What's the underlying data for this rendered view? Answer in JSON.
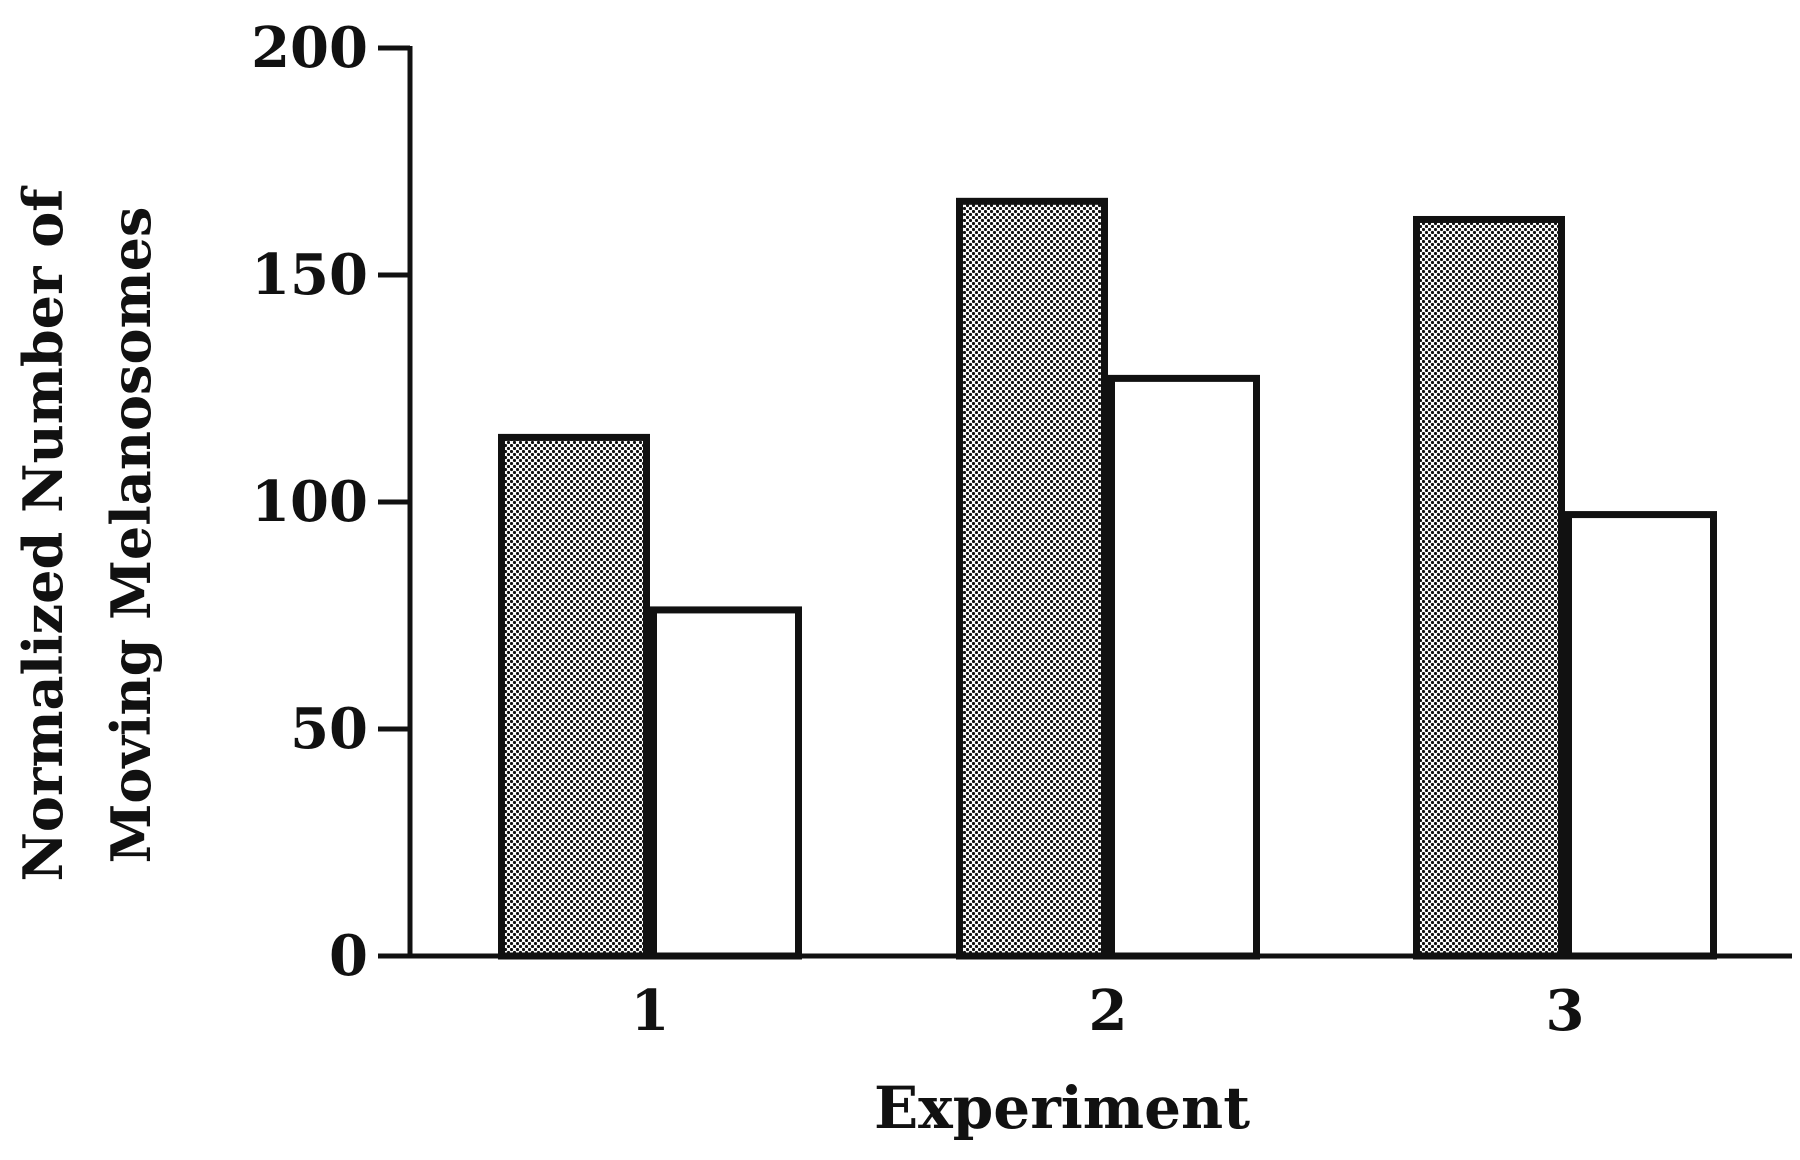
{
  "chart_data": {
    "type": "bar",
    "categories": [
      "1",
      "2",
      "3"
    ],
    "series": [
      {
        "values": [
          115,
          167,
          163
        ],
        "fill": "stippled"
      },
      {
        "values": [
          77,
          128,
          98
        ],
        "fill": "#ffffff"
      }
    ],
    "xlabel": "Experiment",
    "ylabel_lines": [
      "Normalized Number of",
      "Moving  Melanosomes"
    ],
    "ylim": [
      0,
      200
    ],
    "yticks": [
      "0",
      "50",
      "100",
      "150",
      "200"
    ],
    "ytick_values": [
      0,
      50,
      100,
      150,
      200
    ],
    "grid": false,
    "legend": "none"
  },
  "colors": {
    "ink": "#111111",
    "background": "#ffffff"
  }
}
